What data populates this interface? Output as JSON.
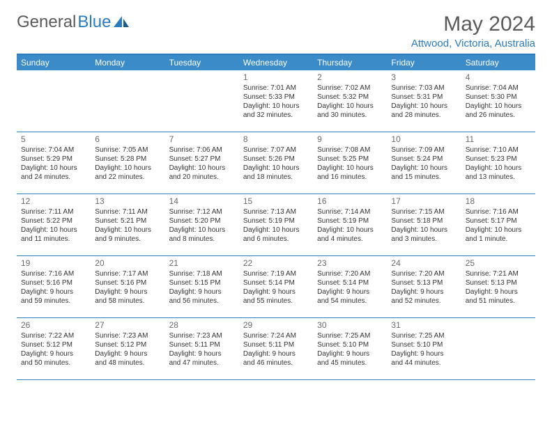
{
  "logo": {
    "text1": "General",
    "text2": "Blue"
  },
  "title": "May 2024",
  "location": "Attwood, Victoria, Australia",
  "colors": {
    "header_bg": "#3b8bc9",
    "border": "#2b7bbf",
    "logo_gray": "#5a5a5a",
    "logo_blue": "#2b7bbf"
  },
  "day_names": [
    "Sunday",
    "Monday",
    "Tuesday",
    "Wednesday",
    "Thursday",
    "Friday",
    "Saturday"
  ],
  "weeks": [
    [
      {
        "n": "",
        "sr": "",
        "ss": "",
        "dl": ""
      },
      {
        "n": "",
        "sr": "",
        "ss": "",
        "dl": ""
      },
      {
        "n": "",
        "sr": "",
        "ss": "",
        "dl": ""
      },
      {
        "n": "1",
        "sr": "Sunrise: 7:01 AM",
        "ss": "Sunset: 5:33 PM",
        "dl": "Daylight: 10 hours and 32 minutes."
      },
      {
        "n": "2",
        "sr": "Sunrise: 7:02 AM",
        "ss": "Sunset: 5:32 PM",
        "dl": "Daylight: 10 hours and 30 minutes."
      },
      {
        "n": "3",
        "sr": "Sunrise: 7:03 AM",
        "ss": "Sunset: 5:31 PM",
        "dl": "Daylight: 10 hours and 28 minutes."
      },
      {
        "n": "4",
        "sr": "Sunrise: 7:04 AM",
        "ss": "Sunset: 5:30 PM",
        "dl": "Daylight: 10 hours and 26 minutes."
      }
    ],
    [
      {
        "n": "5",
        "sr": "Sunrise: 7:04 AM",
        "ss": "Sunset: 5:29 PM",
        "dl": "Daylight: 10 hours and 24 minutes."
      },
      {
        "n": "6",
        "sr": "Sunrise: 7:05 AM",
        "ss": "Sunset: 5:28 PM",
        "dl": "Daylight: 10 hours and 22 minutes."
      },
      {
        "n": "7",
        "sr": "Sunrise: 7:06 AM",
        "ss": "Sunset: 5:27 PM",
        "dl": "Daylight: 10 hours and 20 minutes."
      },
      {
        "n": "8",
        "sr": "Sunrise: 7:07 AM",
        "ss": "Sunset: 5:26 PM",
        "dl": "Daylight: 10 hours and 18 minutes."
      },
      {
        "n": "9",
        "sr": "Sunrise: 7:08 AM",
        "ss": "Sunset: 5:25 PM",
        "dl": "Daylight: 10 hours and 16 minutes."
      },
      {
        "n": "10",
        "sr": "Sunrise: 7:09 AM",
        "ss": "Sunset: 5:24 PM",
        "dl": "Daylight: 10 hours and 15 minutes."
      },
      {
        "n": "11",
        "sr": "Sunrise: 7:10 AM",
        "ss": "Sunset: 5:23 PM",
        "dl": "Daylight: 10 hours and 13 minutes."
      }
    ],
    [
      {
        "n": "12",
        "sr": "Sunrise: 7:11 AM",
        "ss": "Sunset: 5:22 PM",
        "dl": "Daylight: 10 hours and 11 minutes."
      },
      {
        "n": "13",
        "sr": "Sunrise: 7:11 AM",
        "ss": "Sunset: 5:21 PM",
        "dl": "Daylight: 10 hours and 9 minutes."
      },
      {
        "n": "14",
        "sr": "Sunrise: 7:12 AM",
        "ss": "Sunset: 5:20 PM",
        "dl": "Daylight: 10 hours and 8 minutes."
      },
      {
        "n": "15",
        "sr": "Sunrise: 7:13 AM",
        "ss": "Sunset: 5:19 PM",
        "dl": "Daylight: 10 hours and 6 minutes."
      },
      {
        "n": "16",
        "sr": "Sunrise: 7:14 AM",
        "ss": "Sunset: 5:19 PM",
        "dl": "Daylight: 10 hours and 4 minutes."
      },
      {
        "n": "17",
        "sr": "Sunrise: 7:15 AM",
        "ss": "Sunset: 5:18 PM",
        "dl": "Daylight: 10 hours and 3 minutes."
      },
      {
        "n": "18",
        "sr": "Sunrise: 7:16 AM",
        "ss": "Sunset: 5:17 PM",
        "dl": "Daylight: 10 hours and 1 minute."
      }
    ],
    [
      {
        "n": "19",
        "sr": "Sunrise: 7:16 AM",
        "ss": "Sunset: 5:16 PM",
        "dl": "Daylight: 9 hours and 59 minutes."
      },
      {
        "n": "20",
        "sr": "Sunrise: 7:17 AM",
        "ss": "Sunset: 5:16 PM",
        "dl": "Daylight: 9 hours and 58 minutes."
      },
      {
        "n": "21",
        "sr": "Sunrise: 7:18 AM",
        "ss": "Sunset: 5:15 PM",
        "dl": "Daylight: 9 hours and 56 minutes."
      },
      {
        "n": "22",
        "sr": "Sunrise: 7:19 AM",
        "ss": "Sunset: 5:14 PM",
        "dl": "Daylight: 9 hours and 55 minutes."
      },
      {
        "n": "23",
        "sr": "Sunrise: 7:20 AM",
        "ss": "Sunset: 5:14 PM",
        "dl": "Daylight: 9 hours and 54 minutes."
      },
      {
        "n": "24",
        "sr": "Sunrise: 7:20 AM",
        "ss": "Sunset: 5:13 PM",
        "dl": "Daylight: 9 hours and 52 minutes."
      },
      {
        "n": "25",
        "sr": "Sunrise: 7:21 AM",
        "ss": "Sunset: 5:13 PM",
        "dl": "Daylight: 9 hours and 51 minutes."
      }
    ],
    [
      {
        "n": "26",
        "sr": "Sunrise: 7:22 AM",
        "ss": "Sunset: 5:12 PM",
        "dl": "Daylight: 9 hours and 50 minutes."
      },
      {
        "n": "27",
        "sr": "Sunrise: 7:23 AM",
        "ss": "Sunset: 5:12 PM",
        "dl": "Daylight: 9 hours and 48 minutes."
      },
      {
        "n": "28",
        "sr": "Sunrise: 7:23 AM",
        "ss": "Sunset: 5:11 PM",
        "dl": "Daylight: 9 hours and 47 minutes."
      },
      {
        "n": "29",
        "sr": "Sunrise: 7:24 AM",
        "ss": "Sunset: 5:11 PM",
        "dl": "Daylight: 9 hours and 46 minutes."
      },
      {
        "n": "30",
        "sr": "Sunrise: 7:25 AM",
        "ss": "Sunset: 5:10 PM",
        "dl": "Daylight: 9 hours and 45 minutes."
      },
      {
        "n": "31",
        "sr": "Sunrise: 7:25 AM",
        "ss": "Sunset: 5:10 PM",
        "dl": "Daylight: 9 hours and 44 minutes."
      },
      {
        "n": "",
        "sr": "",
        "ss": "",
        "dl": ""
      }
    ]
  ]
}
